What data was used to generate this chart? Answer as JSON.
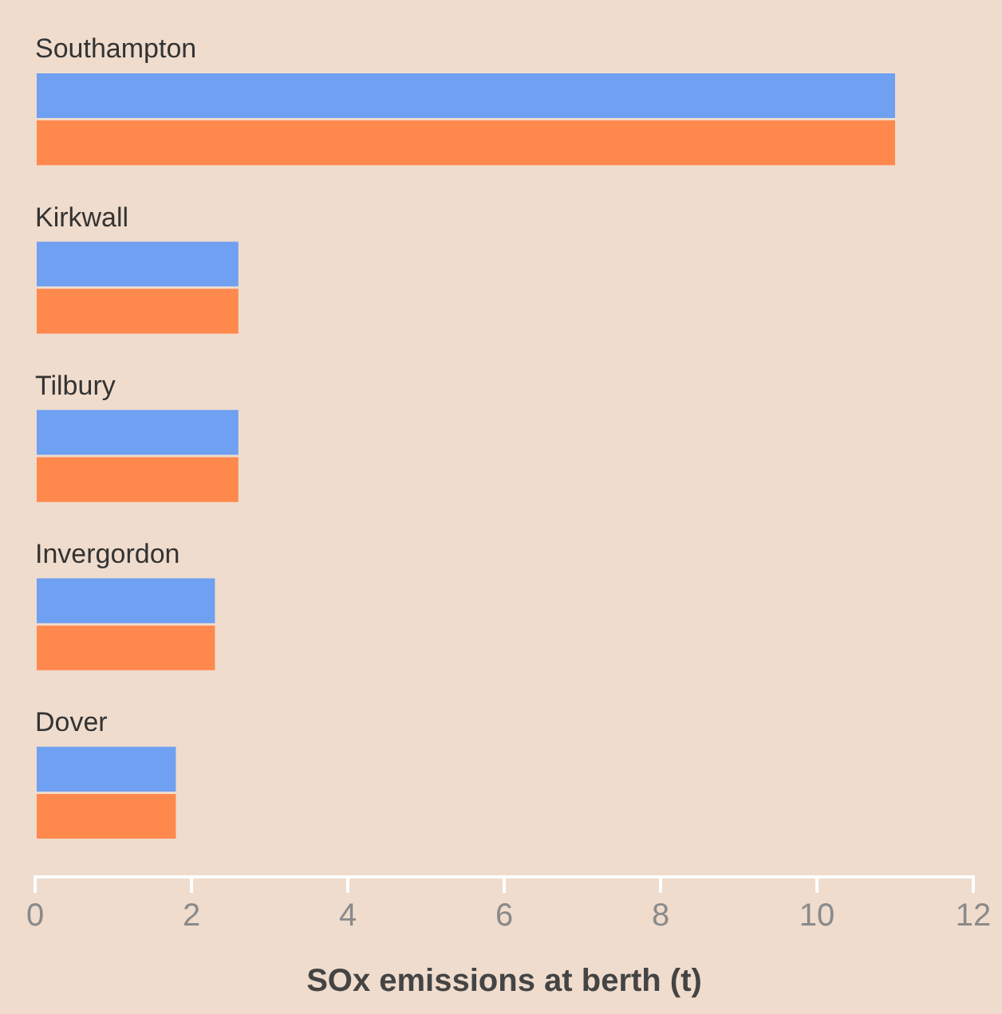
{
  "chart_data": {
    "type": "bar",
    "orientation": "horizontal",
    "xlabel": "SOx emissions at berth (t)",
    "categories": [
      "Southampton",
      "Kirkwall",
      "Tilbury",
      "Invergordon",
      "Dover"
    ],
    "series": [
      {
        "color": "#6fa0f2",
        "values": [
          11.0,
          2.6,
          2.6,
          2.3,
          1.8
        ]
      },
      {
        "color": "#ff884d",
        "values": [
          11.0,
          2.6,
          2.6,
          2.3,
          1.8
        ]
      }
    ],
    "xlim": [
      0,
      12
    ],
    "xticks": [
      0,
      2,
      4,
      6,
      8,
      10,
      12
    ],
    "grid": false,
    "legend": false
  }
}
